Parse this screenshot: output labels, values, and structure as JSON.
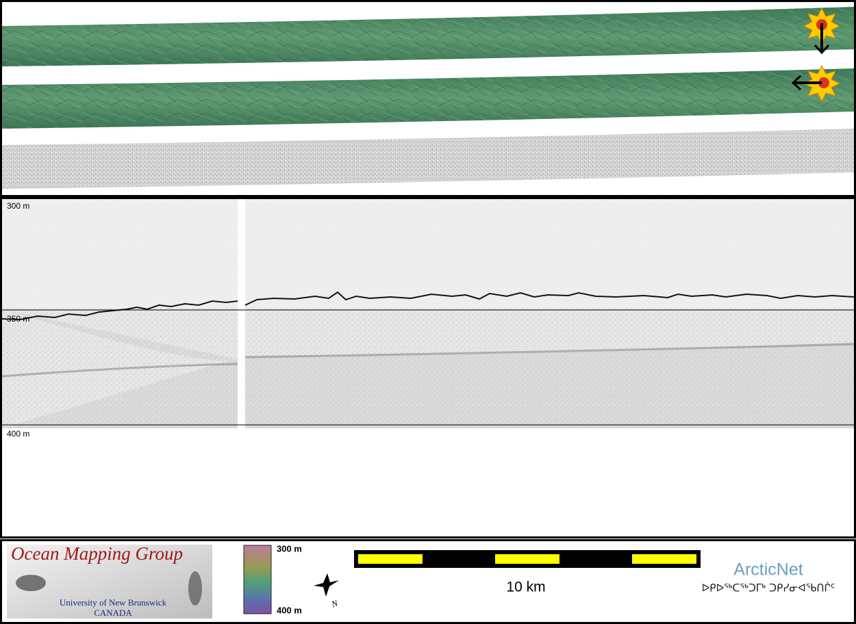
{
  "profile": {
    "depth_labels": [
      "300 m",
      "350 m",
      "400 m"
    ]
  },
  "footer": {
    "logo_title": "Ocean Mapping Group",
    "logo_university": "University of New Brunswick",
    "logo_country": "CANADA",
    "colorbar_top": "300 m",
    "colorbar_bottom": "400 m",
    "compass_label": "N",
    "scale_label": "10 km",
    "partner_name": "ArcticNet",
    "partner_syllabics": "ᐅᑭᐅᖅᑕᖅᑐᒥᒃ ᑐᑭᓯᓂᐊᖃᑎᒌᑦ"
  }
}
